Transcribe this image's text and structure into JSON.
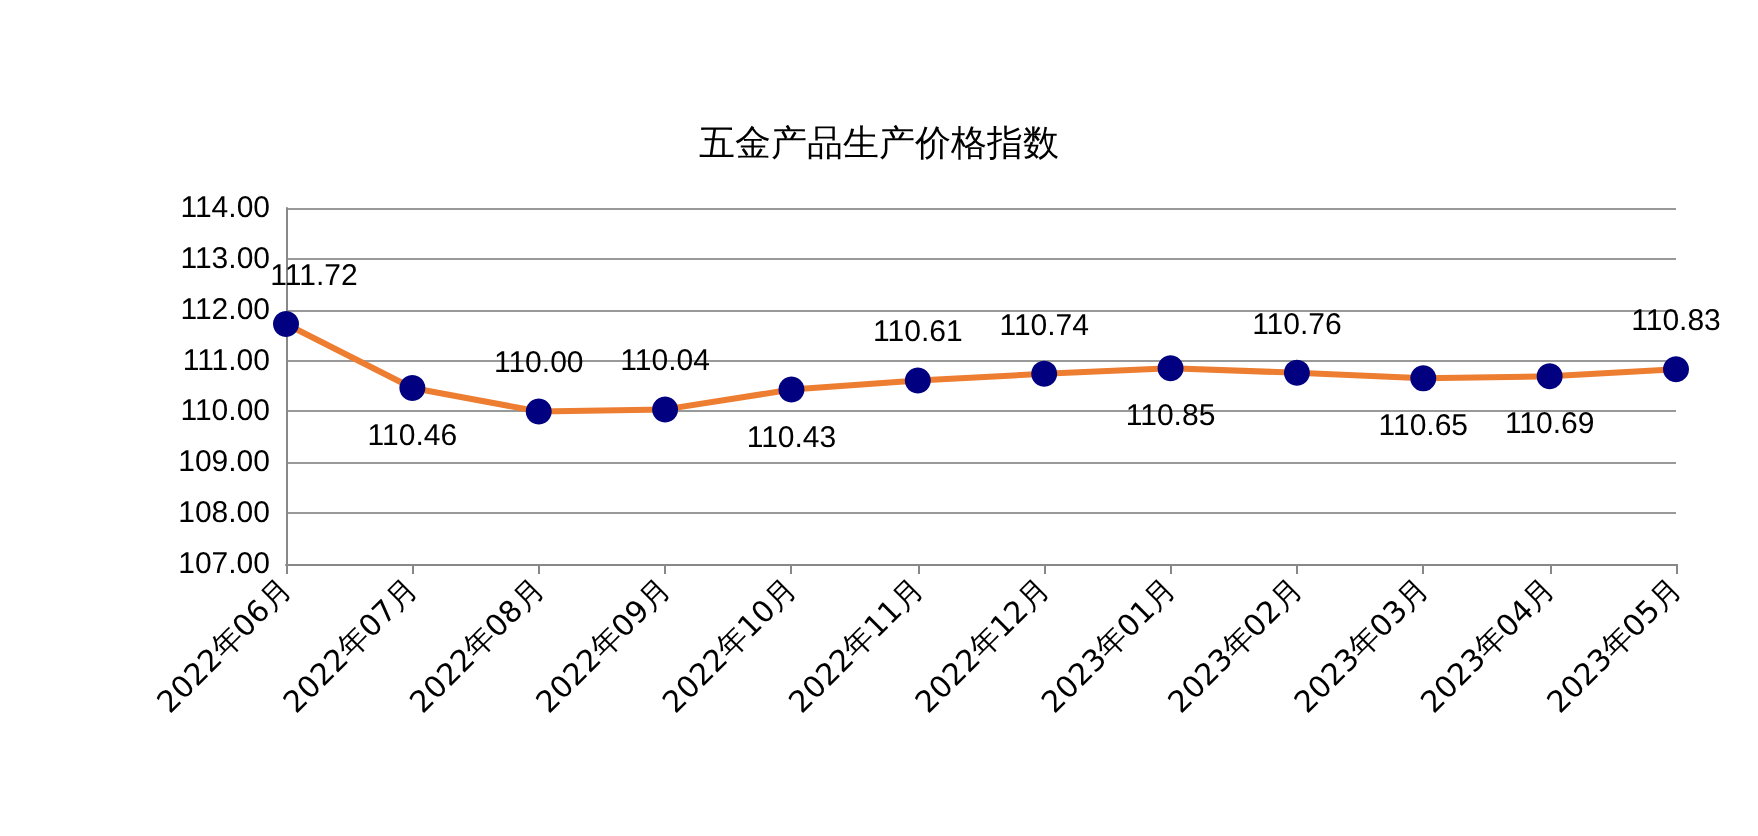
{
  "chart_data": {
    "type": "line",
    "title": "五金产品生产价格指数",
    "categories": [
      "2022年06月",
      "2022年07月",
      "2022年08月",
      "2022年09月",
      "2022年10月",
      "2022年11月",
      "2022年12月",
      "2023年01月",
      "2023年02月",
      "2023年03月",
      "2023年04月",
      "2023年05月"
    ],
    "series": [
      {
        "color": "#ed7d31",
        "colors": [
          "#000080",
          "#000080",
          "#000080",
          "#000080",
          "#000080",
          "#000080",
          "#000080",
          "#000080",
          "#000080",
          "#000080",
          "#000080",
          "#000080"
        ],
        "values": [
          111.72,
          110.46,
          110.0,
          110.04,
          110.43,
          110.61,
          110.74,
          110.85,
          110.76,
          110.65,
          110.69,
          110.83
        ]
      }
    ],
    "ylim": [
      107,
      114
    ],
    "yticks": [
      {
        "value": 107,
        "label": "107.00"
      },
      {
        "value": 108,
        "label": "108.00"
      },
      {
        "value": 109,
        "label": "109.00"
      },
      {
        "value": 110,
        "label": "110.00"
      },
      {
        "value": 111,
        "label": "111.00"
      },
      {
        "value": 112,
        "label": "112.00"
      },
      {
        "value": 113,
        "label": "113.00"
      },
      {
        "value": 114,
        "label": "114.00"
      }
    ],
    "grid": "y",
    "marker": "circle",
    "line_style": "solid",
    "value_labels": [
      [
        "111.72",
        "110.46",
        "110.00",
        "110.04",
        "110.43",
        "110.61",
        "110.74",
        "110.85",
        "110.76",
        "110.65",
        "110.69",
        "110.83"
      ]
    ]
  }
}
